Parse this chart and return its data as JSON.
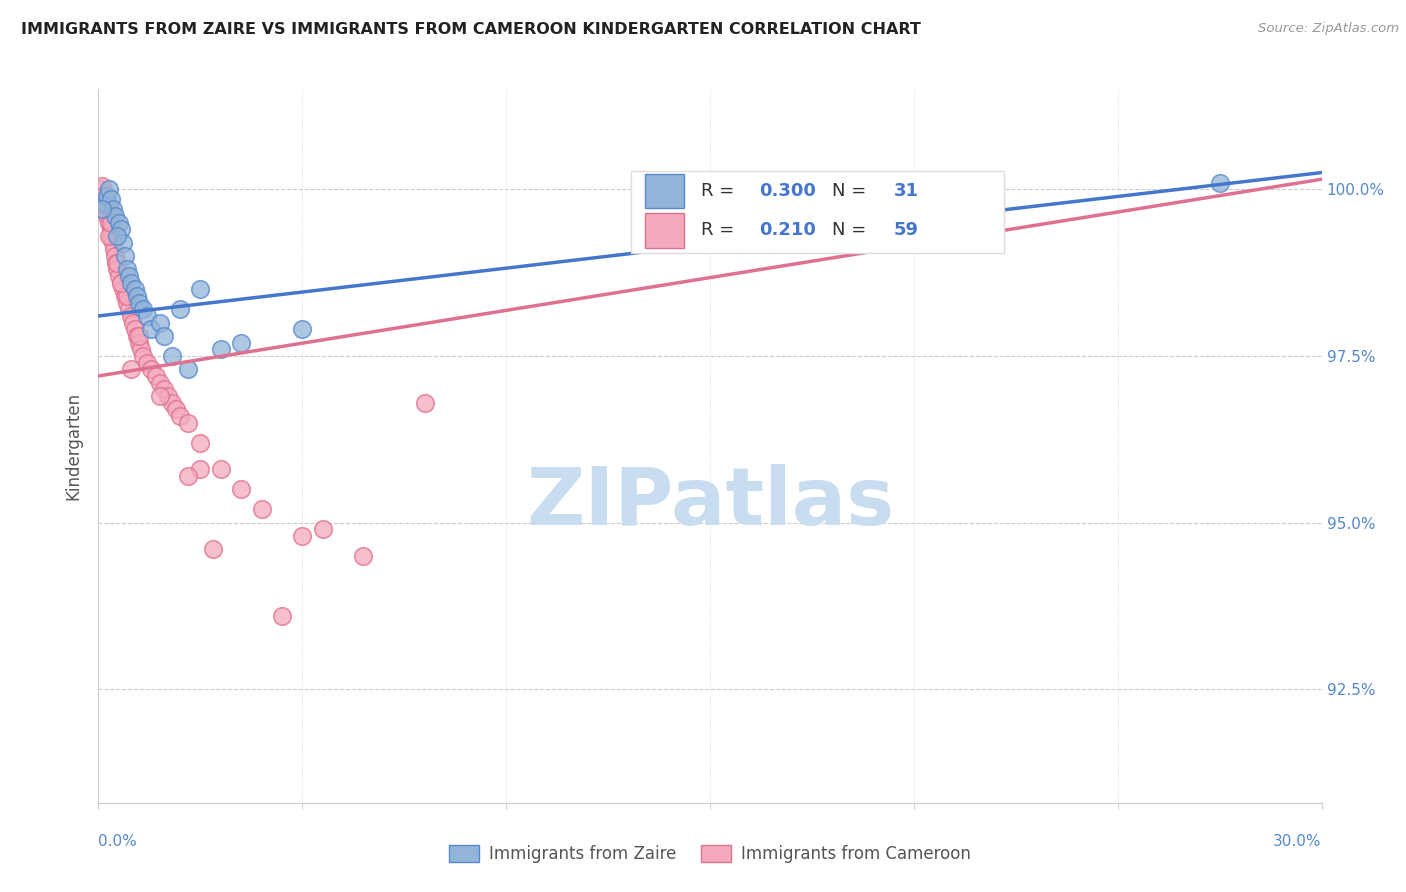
{
  "title": "IMMIGRANTS FROM ZAIRE VS IMMIGRANTS FROM CAMEROON KINDERGARTEN CORRELATION CHART",
  "source": "Source: ZipAtlas.com",
  "ylabel": "Kindergarten",
  "xlim": [
    0.0,
    30.0
  ],
  "ylim": [
    90.8,
    101.5
  ],
  "legend_r_blue": "0.300",
  "legend_n_blue": "31",
  "legend_r_pink": "0.210",
  "legend_n_pink": "59",
  "blue_fill": "#92B4D8",
  "blue_edge": "#5588CC",
  "pink_fill": "#F4AABC",
  "pink_edge": "#E07090",
  "blue_line": "#4477CC",
  "pink_line": "#E07090",
  "watermark_color": "#C8DDF0",
  "grid_color": "#CCCCCC",
  "right_label_color": "#5588CC",
  "y_tick_positions": [
    92.5,
    95.0,
    97.5,
    100.0
  ],
  "y_tick_labels": [
    "92.5%",
    "95.0%",
    "97.5%",
    "100.0%"
  ],
  "blue_line_x0": 0.0,
  "blue_line_y0": 98.1,
  "blue_line_x1": 30.0,
  "blue_line_y1": 100.25,
  "pink_line_x0": 0.0,
  "pink_line_y0": 97.2,
  "pink_line_x1": 30.0,
  "pink_line_y1": 100.15,
  "zaire_x": [
    0.15,
    0.2,
    0.25,
    0.3,
    0.35,
    0.4,
    0.5,
    0.55,
    0.6,
    0.65,
    0.7,
    0.75,
    0.8,
    0.9,
    0.95,
    1.0,
    1.1,
    1.2,
    1.3,
    1.5,
    1.6,
    1.8,
    2.0,
    2.2,
    2.5,
    3.0,
    3.5,
    5.0,
    27.5,
    0.1,
    0.45
  ],
  "zaire_y": [
    99.8,
    99.9,
    100.0,
    99.85,
    99.7,
    99.6,
    99.5,
    99.4,
    99.2,
    99.0,
    98.8,
    98.7,
    98.6,
    98.5,
    98.4,
    98.3,
    98.2,
    98.1,
    97.9,
    98.0,
    97.8,
    97.5,
    98.2,
    97.3,
    98.5,
    97.6,
    97.7,
    97.9,
    100.1,
    99.7,
    99.3
  ],
  "cameroon_x": [
    0.05,
    0.1,
    0.12,
    0.15,
    0.18,
    0.2,
    0.22,
    0.25,
    0.28,
    0.3,
    0.32,
    0.35,
    0.38,
    0.4,
    0.42,
    0.45,
    0.5,
    0.55,
    0.6,
    0.65,
    0.7,
    0.75,
    0.8,
    0.85,
    0.9,
    0.95,
    1.0,
    1.05,
    1.1,
    1.2,
    1.3,
    1.4,
    1.5,
    1.6,
    1.7,
    1.8,
    1.9,
    2.0,
    2.2,
    2.5,
    3.0,
    3.5,
    4.0,
    5.0,
    6.5,
    8.0,
    0.25,
    0.45,
    0.7,
    1.0,
    1.5,
    2.5,
    2.8,
    5.5,
    0.3,
    0.55,
    0.8,
    4.5,
    2.2
  ],
  "cameroon_y": [
    100.0,
    100.05,
    99.9,
    99.8,
    99.7,
    99.8,
    99.6,
    99.5,
    99.7,
    99.4,
    99.3,
    99.2,
    99.1,
    99.0,
    98.9,
    98.8,
    98.7,
    98.6,
    98.5,
    98.4,
    98.3,
    98.2,
    98.1,
    98.0,
    97.9,
    97.8,
    97.7,
    97.6,
    97.5,
    97.4,
    97.3,
    97.2,
    97.1,
    97.0,
    96.9,
    96.8,
    96.7,
    96.6,
    96.5,
    96.2,
    95.8,
    95.5,
    95.2,
    94.8,
    94.5,
    96.8,
    99.3,
    98.9,
    98.4,
    97.8,
    96.9,
    95.8,
    94.6,
    94.9,
    99.5,
    98.6,
    97.3,
    93.6,
    95.7
  ]
}
